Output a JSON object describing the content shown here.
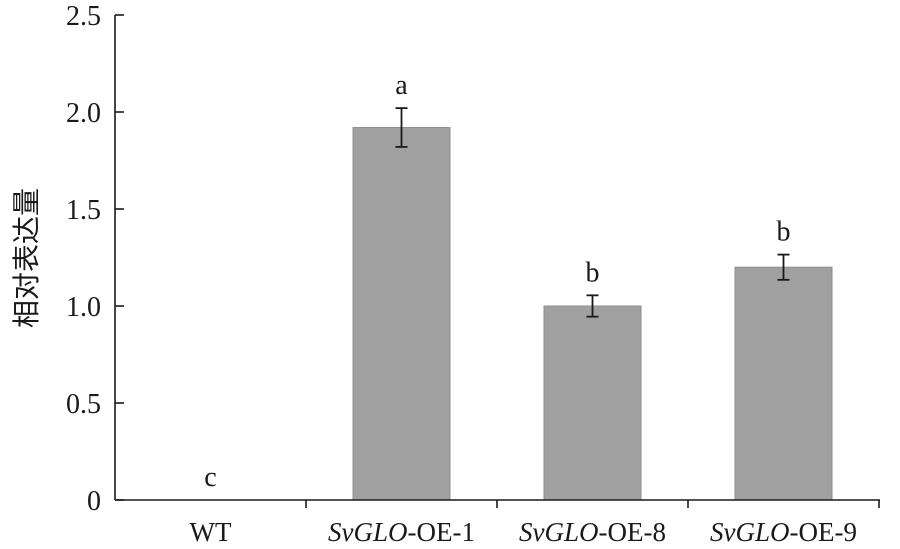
{
  "chart_data": {
    "type": "bar",
    "categories": [
      {
        "prefix": "",
        "suffix": "WT"
      },
      {
        "prefix": "SvGLO",
        "suffix": "-OE-1"
      },
      {
        "prefix": "SvGLO",
        "suffix": "-OE-8"
      },
      {
        "prefix": "SvGLO",
        "suffix": "-OE-9"
      }
    ],
    "values": [
      0,
      1.92,
      1.0,
      1.2
    ],
    "errors": [
      0,
      0.1,
      0.055,
      0.065
    ],
    "significance": [
      "c",
      "a",
      "b",
      "b"
    ],
    "ylabel": "相对表达量",
    "ylim": [
      0,
      2.5
    ],
    "yticks": [
      0,
      0.5,
      1.0,
      1.5,
      2.0,
      2.5
    ],
    "ytick_labels": [
      "0",
      "0.5",
      "1.0",
      "1.5",
      "2.0",
      "2.5"
    ],
    "bar_color": "#a0a0a0",
    "grid": false
  }
}
